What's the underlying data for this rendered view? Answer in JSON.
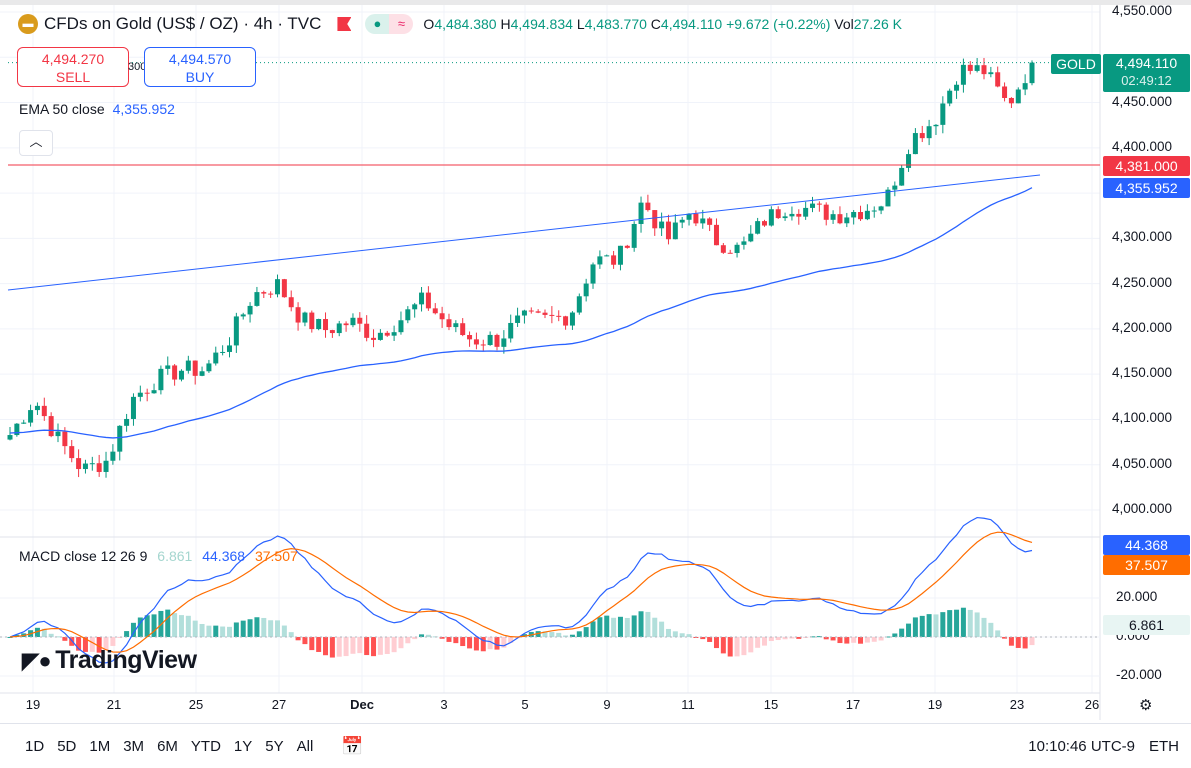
{
  "header": {
    "symbol_title": "CFDs on Gold (US$ / OZ) · 4h · TVC",
    "open_label": "O",
    "open": "4,484.380",
    "high_label": "H",
    "high": "4,494.834",
    "low_label": "L",
    "low": "4,483.770",
    "close_label": "C",
    "close": "4,494.110",
    "change": "+9.672 (+0.22%)",
    "vol_label": "Vol",
    "volume": "27.26 K"
  },
  "trade": {
    "sell_price": "4,494.270",
    "sell_label": "SELL",
    "spread": "300",
    "buy_price": "4,494.570",
    "buy_label": "BUY"
  },
  "ema": {
    "label": "EMA 50 close",
    "value": "4,355.952"
  },
  "macd": {
    "label": "MACD close 12 26 9",
    "hist": "6.861",
    "macd": "44.368",
    "signal": "37.507"
  },
  "price_tags": {
    "symbol": "GOLD",
    "last": "4,494.110",
    "countdown": "02:49:12",
    "line_level": "4,381.000",
    "ema": "4,355.952",
    "macd": "44.368",
    "signal": "37.507",
    "hist": "6.861"
  },
  "colors": {
    "up": "#089981",
    "down": "#f23645",
    "ema": "#2962ff",
    "signal": "#ff6d00",
    "hline": "#f23645"
  },
  "chart_data": {
    "type": "candlestick",
    "y_ticks": [
      "4,550.000",
      "4,450.000",
      "4,400.000",
      "4,300.000",
      "4,250.000",
      "4,200.000",
      "4,150.000",
      "4,100.000",
      "4,050.000",
      "4,000.000"
    ],
    "ylim": [
      4000,
      4550
    ],
    "macd_ticks": [
      "20.000",
      "0.000",
      "-20.000"
    ],
    "x_ticks": [
      "19",
      "21",
      "25",
      "27",
      "Dec",
      "3",
      "5",
      "9",
      "11",
      "15",
      "17",
      "19",
      "23",
      "26"
    ],
    "approx_close_path": [
      4083,
      4122,
      4077,
      4044,
      4055,
      4122,
      4144,
      4155,
      4155,
      4188,
      4238,
      4249,
      4210,
      4199,
      4208,
      4193,
      4210,
      4232,
      4204,
      4188,
      4188,
      4210,
      4210,
      4215,
      4276,
      4276,
      4342,
      4298,
      4331,
      4298,
      4287,
      4320,
      4337,
      4331,
      4326,
      4331,
      4342,
      4409,
      4431,
      4486,
      4486,
      4447,
      4494
    ],
    "horizontal_line": 4381,
    "trend_line": [
      4243,
      4370
    ]
  },
  "logo": "TradingView",
  "toolbar": {
    "ranges": [
      "1D",
      "5D",
      "1M",
      "3M",
      "6M",
      "YTD",
      "1Y",
      "5Y",
      "All"
    ],
    "time": "10:10:46 UTC-9",
    "session": "ETH"
  }
}
